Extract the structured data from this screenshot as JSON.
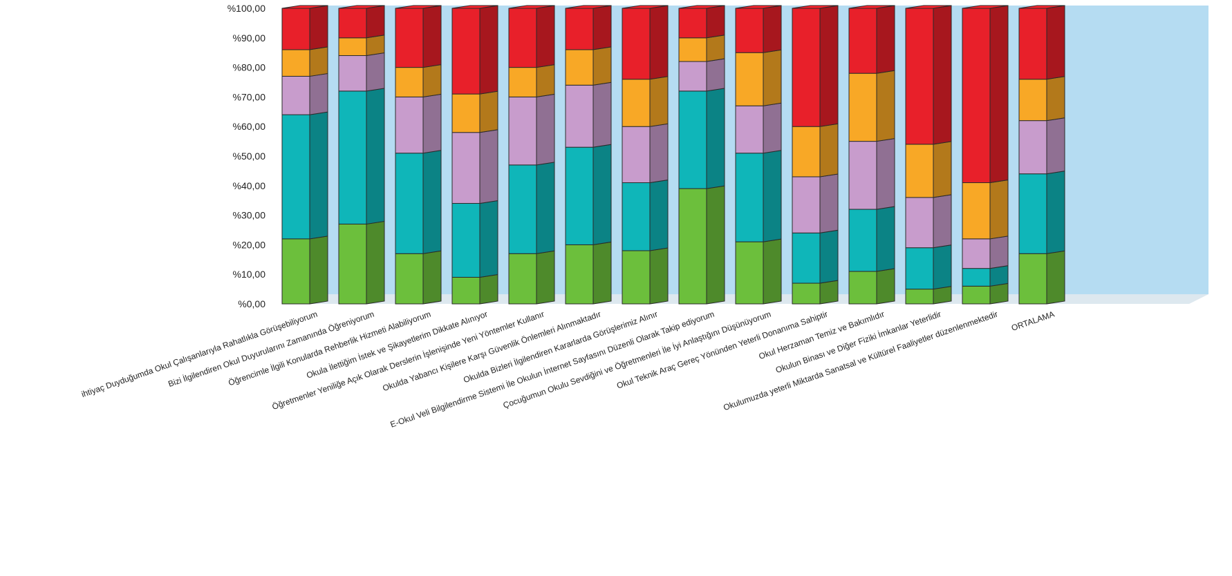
{
  "chart_data": {
    "type": "bar",
    "stacked": true,
    "three_d": true,
    "title": "",
    "xlabel": "",
    "ylabel": "",
    "ylim": [
      0,
      100
    ],
    "y_ticks": [
      "%0,00",
      "%10,00",
      "%20,00",
      "%30,00",
      "%40,00",
      "%50,00",
      "%60,00",
      "%70,00",
      "%80,00",
      "%90,00",
      "%100,00"
    ],
    "legend": "none",
    "grid": false,
    "categories": [
      "ihtiyaç Duyduğumda Okul Çalışanlarıyla Rahatlıkla Görüşebiliyorum",
      "Bizi İlgilendiren Okul Duyurularını Zamanında Öğreniyorum",
      "Öğrencimle İlgili Konularda Rehberlik Hizmeti Alabiliyorum",
      "Okula İlettiğim İstek ve Şikayetlerim Dikkate Alınıyor",
      "Öğretmenler Yeniliğe Açık Olarak Derslerin İşlenişinde Yeni Yöntemler Kullanır",
      "Okulda Yabancı Kişilere Karşı Güvenlik Önlemleri Alınmaktadır",
      "Okulda Bizleri İlgilendiren Kararlarda Görüşlerimiz Alınır",
      "E-Okul Veli Bilgilendirme Sistemi İle Okulun İnternet Sayfasını Düzenli Olarak Takip ediyorum",
      "Çocuğumun Okulu Sevdiğini ve Öğretmenleri İle İyi Anlaştığını Düşünüyorum",
      "Okul Teknik Araç Gereç Yönünden Yeterli Donanıma Sahiptir",
      "Okul Herzaman Temiz ve Bakımlıdır",
      "Okulun Binası ve Diğer Fiziki İmkanlar Yeterlidir",
      "Okulumuzda yeterli Miktarda Sanatsal ve Kültürel Faaliyetler düzenlenmektedir",
      "ORTALAMA"
    ],
    "series": [
      {
        "color": "#6cbf3c",
        "values": [
          22,
          27,
          17,
          9,
          17,
          20,
          18,
          39,
          21,
          7,
          11,
          5,
          6,
          17
        ]
      },
      {
        "color": "#0fb6b9",
        "values": [
          42,
          45,
          34,
          25,
          30,
          33,
          23,
          33,
          30,
          17,
          21,
          14,
          6,
          27
        ]
      },
      {
        "color": "#c89ccc",
        "values": [
          13,
          12,
          19,
          24,
          23,
          21,
          19,
          10,
          16,
          19,
          23,
          17,
          10,
          18
        ]
      },
      {
        "color": "#f8a826",
        "values": [
          9,
          6,
          10,
          13,
          10,
          12,
          16,
          8,
          18,
          17,
          23,
          18,
          19,
          14
        ]
      },
      {
        "color": "#e8202a",
        "values": [
          14,
          10,
          20,
          29,
          20,
          14,
          24,
          10,
          15,
          40,
          22,
          46,
          59,
          24
        ]
      }
    ]
  }
}
